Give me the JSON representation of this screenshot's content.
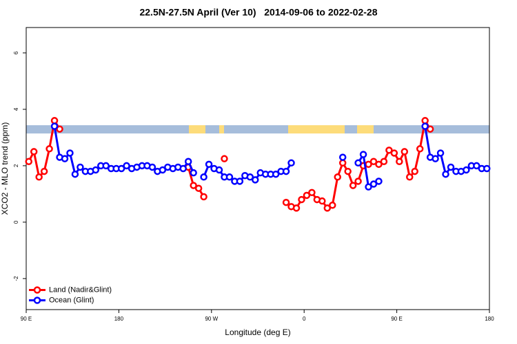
{
  "chart_data": {
    "type": "line",
    "title": "22.5N-27.5N April (Ver 10)   2014-09-06 to 2022-02-28",
    "x_label": "Longitude (deg E)",
    "y_label": "XCO2 - MLO trend (ppm)",
    "xlim": [
      90,
      540
    ],
    "ylim": [
      -3.1,
      6.9
    ],
    "xticks": [
      {
        "value": 90,
        "label": "90 E"
      },
      180,
      {
        "value": 270,
        "label": "90 W"
      },
      {
        "value": 360,
        "label": "0"
      },
      {
        "value": 450,
        "label": "90 E"
      },
      {
        "value": 540,
        "label": "180"
      }
    ],
    "yticks": [
      -2,
      0,
      2,
      4,
      6
    ],
    "grid": false,
    "legend": "bottomleft",
    "series": [
      {
        "name": "Land (Nadir&Glint)",
        "color": "#ff0000",
        "x": [
          92.5,
          97.5,
          102.5,
          107.5,
          112.5,
          117.5,
          122.5,
          null,
          247.5,
          252.5,
          257.5,
          262.5,
          null,
          282.5,
          null,
          342.5,
          347.5,
          352.5,
          357.5,
          362.5,
          367.5,
          372.5,
          377.5,
          382.5,
          387.5,
          392.5,
          397.5,
          402.5,
          407.5,
          412.5,
          417.5,
          422.5,
          427.5,
          432.5,
          437.5,
          442.5,
          447.5,
          452.5,
          457.5,
          462.5,
          467.5,
          472.5,
          477.5,
          482.5
        ],
        "values": [
          2.15,
          2.5,
          1.6,
          1.8,
          2.6,
          3.6,
          3.3,
          null,
          1.95,
          1.3,
          1.2,
          0.9,
          null,
          2.25,
          null,
          0.7,
          0.55,
          0.5,
          0.8,
          0.95,
          1.05,
          0.8,
          0.75,
          0.5,
          0.6,
          1.6,
          2.1,
          1.8,
          1.3,
          1.45,
          2.0,
          2.05,
          2.15,
          2.05,
          2.15,
          2.55,
          2.45,
          2.15,
          2.5,
          1.6,
          1.8,
          2.6,
          3.6,
          3.3
        ]
      },
      {
        "name": "Ocean (Glint)",
        "color": "#0000ff",
        "x": [
          117.5,
          122.5,
          127.5,
          132.5,
          137.5,
          142.5,
          147.5,
          152.5,
          157.5,
          162.5,
          167.5,
          172.5,
          177.5,
          182.5,
          187.5,
          192.5,
          197.5,
          202.5,
          207.5,
          212.5,
          217.5,
          222.5,
          227.5,
          232.5,
          237.5,
          242.5,
          247.5,
          252.5,
          null,
          262.5,
          267.5,
          272.5,
          277.5,
          282.5,
          287.5,
          292.5,
          297.5,
          302.5,
          307.5,
          312.5,
          317.5,
          322.5,
          327.5,
          332.5,
          337.5,
          342.5,
          347.5,
          null,
          397.5,
          null,
          412.5,
          417.5,
          422.5,
          427.5,
          432.5,
          null,
          477.5,
          482.5,
          487.5,
          492.5,
          497.5,
          502.5,
          507.5,
          512.5,
          517.5,
          522.5,
          527.5,
          532.5,
          537.5
        ],
        "values": [
          3.4,
          2.3,
          2.25,
          2.45,
          1.7,
          1.95,
          1.8,
          1.8,
          1.85,
          2.0,
          2.0,
          1.9,
          1.9,
          1.9,
          2.0,
          1.9,
          1.95,
          2.0,
          2.0,
          1.95,
          1.8,
          1.85,
          1.95,
          1.9,
          1.95,
          1.9,
          2.15,
          1.75,
          null,
          1.6,
          2.05,
          1.9,
          1.85,
          1.6,
          1.6,
          1.45,
          1.45,
          1.65,
          1.6,
          1.5,
          1.75,
          1.7,
          1.7,
          1.7,
          1.8,
          1.8,
          2.1,
          null,
          2.3,
          null,
          2.1,
          2.4,
          1.25,
          1.35,
          1.45,
          null,
          3.4,
          2.3,
          2.25,
          2.45,
          1.7,
          1.95,
          1.8,
          1.8,
          1.85,
          2.0,
          2.0,
          1.9,
          1.9
        ]
      }
    ]
  }
}
